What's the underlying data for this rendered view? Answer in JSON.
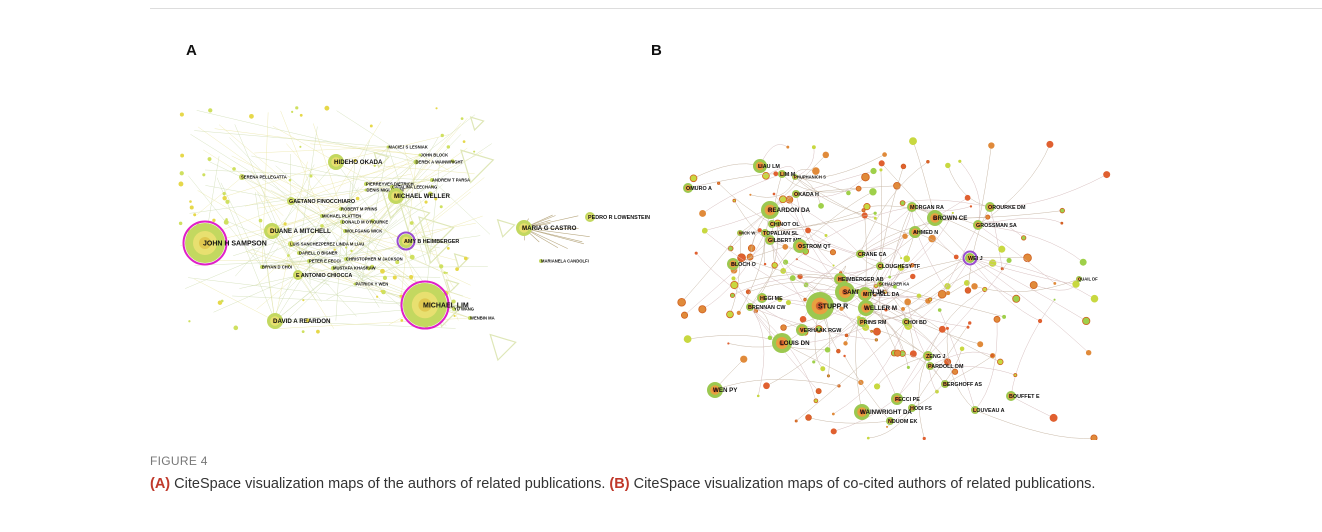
{
  "panels": [
    {
      "label": "A",
      "nodes": [
        "HIDEHO OKADA",
        "MACIEJ S LESNIAK",
        "JOHN BLOCK",
        "DEREK A WAINWRIGHT",
        "SERENA PELLEGATTA",
        "ANDREW T PARSA",
        "PIERREYVES DIETRICH",
        "CATALINA LEECHANG",
        "DENIS MIGLIORINI",
        "MICHAEL WELLER",
        "GAETANO FINOCCHIARO",
        "ROBERT M PRINS",
        "MICHAEL PLATTEN",
        "DONALD M O'ROURKE",
        "WOLFGANG WICK",
        "JOHN H SAMPSON",
        "DUANE A MITCHELL",
        "AMY B HEIMBERGER",
        "LUIS SANCHEZPEREZ LINDA M LIAU",
        "DARELL D BIGNER",
        "PETER E FECCI",
        "CHRISTOPHER M JACKSON",
        "BRYAN D CHOI",
        "MUSTAFA KHASRAW",
        "E ANTONIO CHIOCCA",
        "MICHAEL LIM",
        "DAVID A REARDON",
        "PATRICK Y WEN",
        "YU WANG",
        "WENBIN MA",
        "MARIA G CASTRO",
        "PEDRO R LOWENSTEIN",
        "MARIANELA CANDOLFI"
      ]
    },
    {
      "label": "B",
      "nodes": [
        "PHUPHANICH S",
        "LIAU LM",
        "LIM M",
        "OMURO A",
        "OKADA H",
        "REARDON DA",
        "CHINOT OL",
        "WICK W",
        "TOPALIAN SL",
        "GILBERT MR",
        "OSTROM QT",
        "BLOCH O",
        "MORGAN RA",
        "BROWN CE",
        "OROURKE DM",
        "AHMED N",
        "GROSSMAN SA",
        "CRANE CA",
        "CLOUGHESY TF",
        "WEI J",
        "HEIMBERGER AB",
        "SCHALPER KA",
        "SAMPSON JH",
        "MITCHELL DA",
        "STUPP R",
        "WELLER M",
        "HEGI ME",
        "BRENNAN CW",
        "VERHAAK RGW",
        "PRINS RM",
        "CHOI BD",
        "LOUIS DN",
        "ZENG J",
        "PARDOLL DM",
        "WEN PY",
        "BERGHOFF AS",
        "BOUFFET E",
        "QUAIL DF",
        "FECCI PE",
        "HODI FS",
        "LOUVEAU A",
        "WAINWRIGHT DA",
        "NDUOM EK"
      ]
    }
  ],
  "caption": {
    "figure": "FIGURE 4",
    "parts": [
      {
        "label": "(A)",
        "text": " CiteSpace visualization maps of the authors of related publications. "
      },
      {
        "label": "(B)",
        "text": " CiteSpace visualization maps of co-cited authors of related publications."
      }
    ]
  }
}
